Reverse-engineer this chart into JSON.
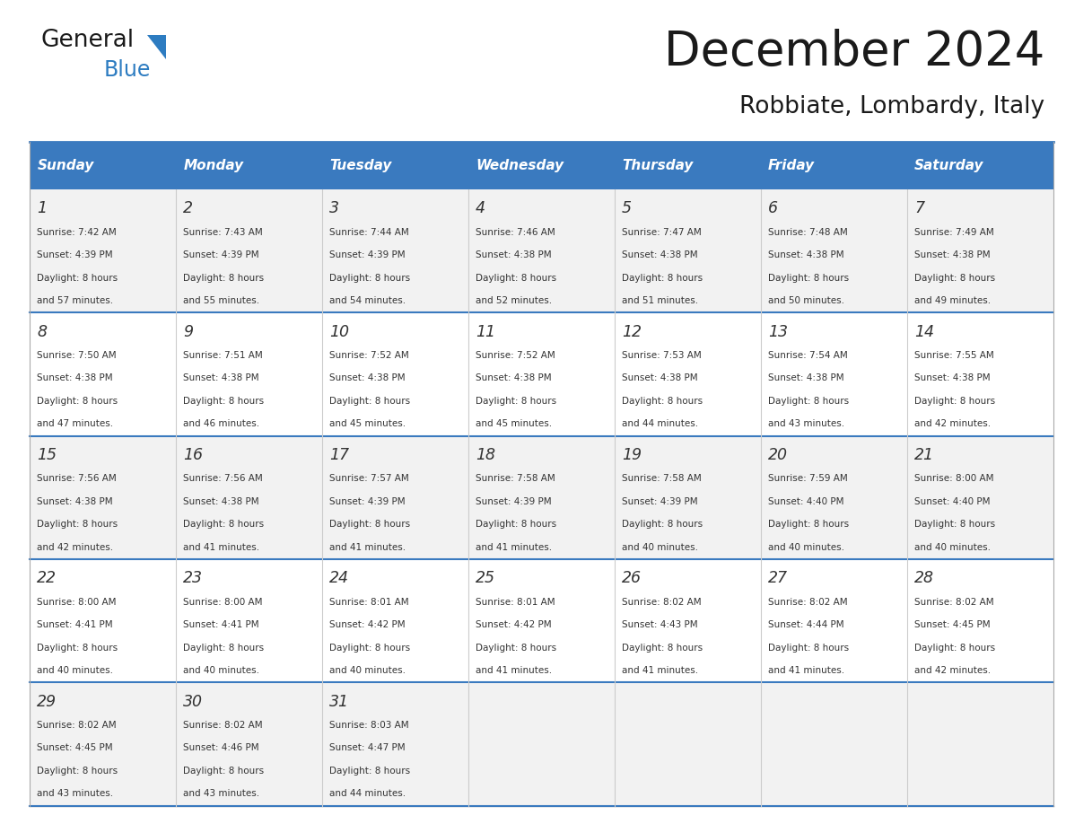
{
  "title": "December 2024",
  "subtitle": "Robbiate, Lombardy, Italy",
  "header_color": "#3a7abf",
  "header_text_color": "#ffffff",
  "day_headers": [
    "Sunday",
    "Monday",
    "Tuesday",
    "Wednesday",
    "Thursday",
    "Friday",
    "Saturday"
  ],
  "weeks": [
    [
      {
        "day": 1,
        "sunrise": "7:42 AM",
        "sunset": "4:39 PM",
        "daylight": "8 hours and 57 minutes."
      },
      {
        "day": 2,
        "sunrise": "7:43 AM",
        "sunset": "4:39 PM",
        "daylight": "8 hours and 55 minutes."
      },
      {
        "day": 3,
        "sunrise": "7:44 AM",
        "sunset": "4:39 PM",
        "daylight": "8 hours and 54 minutes."
      },
      {
        "day": 4,
        "sunrise": "7:46 AM",
        "sunset": "4:38 PM",
        "daylight": "8 hours and 52 minutes."
      },
      {
        "day": 5,
        "sunrise": "7:47 AM",
        "sunset": "4:38 PM",
        "daylight": "8 hours and 51 minutes."
      },
      {
        "day": 6,
        "sunrise": "7:48 AM",
        "sunset": "4:38 PM",
        "daylight": "8 hours and 50 minutes."
      },
      {
        "day": 7,
        "sunrise": "7:49 AM",
        "sunset": "4:38 PM",
        "daylight": "8 hours and 49 minutes."
      }
    ],
    [
      {
        "day": 8,
        "sunrise": "7:50 AM",
        "sunset": "4:38 PM",
        "daylight": "8 hours and 47 minutes."
      },
      {
        "day": 9,
        "sunrise": "7:51 AM",
        "sunset": "4:38 PM",
        "daylight": "8 hours and 46 minutes."
      },
      {
        "day": 10,
        "sunrise": "7:52 AM",
        "sunset": "4:38 PM",
        "daylight": "8 hours and 45 minutes."
      },
      {
        "day": 11,
        "sunrise": "7:52 AM",
        "sunset": "4:38 PM",
        "daylight": "8 hours and 45 minutes."
      },
      {
        "day": 12,
        "sunrise": "7:53 AM",
        "sunset": "4:38 PM",
        "daylight": "8 hours and 44 minutes."
      },
      {
        "day": 13,
        "sunrise": "7:54 AM",
        "sunset": "4:38 PM",
        "daylight": "8 hours and 43 minutes."
      },
      {
        "day": 14,
        "sunrise": "7:55 AM",
        "sunset": "4:38 PM",
        "daylight": "8 hours and 42 minutes."
      }
    ],
    [
      {
        "day": 15,
        "sunrise": "7:56 AM",
        "sunset": "4:38 PM",
        "daylight": "8 hours and 42 minutes."
      },
      {
        "day": 16,
        "sunrise": "7:56 AM",
        "sunset": "4:38 PM",
        "daylight": "8 hours and 41 minutes."
      },
      {
        "day": 17,
        "sunrise": "7:57 AM",
        "sunset": "4:39 PM",
        "daylight": "8 hours and 41 minutes."
      },
      {
        "day": 18,
        "sunrise": "7:58 AM",
        "sunset": "4:39 PM",
        "daylight": "8 hours and 41 minutes."
      },
      {
        "day": 19,
        "sunrise": "7:58 AM",
        "sunset": "4:39 PM",
        "daylight": "8 hours and 40 minutes."
      },
      {
        "day": 20,
        "sunrise": "7:59 AM",
        "sunset": "4:40 PM",
        "daylight": "8 hours and 40 minutes."
      },
      {
        "day": 21,
        "sunrise": "8:00 AM",
        "sunset": "4:40 PM",
        "daylight": "8 hours and 40 minutes."
      }
    ],
    [
      {
        "day": 22,
        "sunrise": "8:00 AM",
        "sunset": "4:41 PM",
        "daylight": "8 hours and 40 minutes."
      },
      {
        "day": 23,
        "sunrise": "8:00 AM",
        "sunset": "4:41 PM",
        "daylight": "8 hours and 40 minutes."
      },
      {
        "day": 24,
        "sunrise": "8:01 AM",
        "sunset": "4:42 PM",
        "daylight": "8 hours and 40 minutes."
      },
      {
        "day": 25,
        "sunrise": "8:01 AM",
        "sunset": "4:42 PM",
        "daylight": "8 hours and 41 minutes."
      },
      {
        "day": 26,
        "sunrise": "8:02 AM",
        "sunset": "4:43 PM",
        "daylight": "8 hours and 41 minutes."
      },
      {
        "day": 27,
        "sunrise": "8:02 AM",
        "sunset": "4:44 PM",
        "daylight": "8 hours and 41 minutes."
      },
      {
        "day": 28,
        "sunrise": "8:02 AM",
        "sunset": "4:45 PM",
        "daylight": "8 hours and 42 minutes."
      }
    ],
    [
      {
        "day": 29,
        "sunrise": "8:02 AM",
        "sunset": "4:45 PM",
        "daylight": "8 hours and 43 minutes."
      },
      {
        "day": 30,
        "sunrise": "8:02 AM",
        "sunset": "4:46 PM",
        "daylight": "8 hours and 43 minutes."
      },
      {
        "day": 31,
        "sunrise": "8:03 AM",
        "sunset": "4:47 PM",
        "daylight": "8 hours and 44 minutes."
      },
      null,
      null,
      null,
      null
    ]
  ],
  "logo_general_color": "#1a1a1a",
  "logo_blue_color": "#2d7cc1",
  "border_color": "#3a7abf",
  "sep_color": "#3a7abf",
  "cell_bg_odd": "#f2f2f2",
  "cell_bg_even": "#ffffff",
  "text_color": "#333333",
  "day_num_color": "#333333"
}
